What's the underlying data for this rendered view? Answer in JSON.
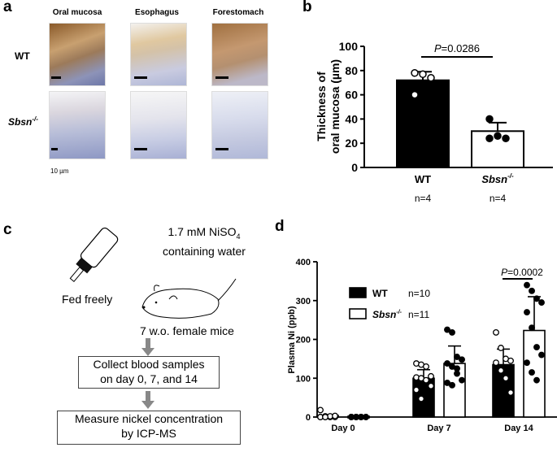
{
  "panel_a": {
    "label": "a",
    "columns": [
      "Oral mucosa",
      "Esophagus",
      "Forestomach"
    ],
    "rows": [
      "WT",
      "Sbsn"
    ],
    "row_sup": "-/-",
    "scale": "10 µm"
  },
  "panel_c": {
    "label": "c",
    "water": "1.7 mM NiSO",
    "water_sub": "4",
    "water2": "containing water",
    "fed": "Fed freely",
    "mice": "7 w.o. female mice",
    "step1a": "Collect blood samples",
    "step1b": "on day 0, 7, and 14",
    "step2a": "Measure nickel concentration",
    "step2b": "by ICP-MS"
  },
  "chart_data": [
    {
      "panel": "b",
      "type": "bar",
      "ylabel": "Thickness of oral mucosa (µm)",
      "ylabel1": "Thickness of",
      "ylabel2": "oral mucosa (µm)",
      "ylim": [
        0,
        100
      ],
      "yticks": [
        0,
        20,
        40,
        60,
        80,
        100
      ],
      "categories": [
        "WT",
        "Sbsn"
      ],
      "cat_sup": [
        "",
        "-/-"
      ],
      "n": [
        "n=4",
        "n=4"
      ],
      "means": [
        72,
        30
      ],
      "sd": [
        7,
        7
      ],
      "points": [
        [
          78,
          77,
          74,
          60
        ],
        [
          40,
          26,
          24,
          24
        ]
      ],
      "colors": [
        "#000000",
        "#ffffff"
      ],
      "annotation": {
        "p_prefix": "P",
        "p_value": "=0.0286"
      }
    },
    {
      "panel": "d",
      "type": "bar",
      "ylabel": "Plasma Ni (ppb)",
      "ylim": [
        0,
        400
      ],
      "yticks": [
        0,
        100,
        200,
        300,
        400
      ],
      "categories": [
        "Day 0",
        "Day 7",
        "Day 14"
      ],
      "series": [
        {
          "name": "WT",
          "sup": "",
          "n": "n=10",
          "color": "#000000",
          "means": [
            2,
            100,
            135
          ],
          "sd": [
            5,
            22,
            40
          ],
          "points": [
            [
              0,
              0,
              0,
              0,
              0,
              2,
              2,
              3,
              18,
              0
            ],
            [
              138,
              135,
              130,
              105,
              102,
              100,
              95,
              80,
              70,
              47
            ],
            [
              218,
              178,
              150,
              145,
              140,
              120,
              100,
              63
            ]
          ]
        },
        {
          "name": "Sbsn",
          "sup": "-/-",
          "n": "n=11",
          "color": "#ffffff",
          "means": [
            0,
            138,
            223
          ],
          "sd": [
            1,
            45,
            87
          ],
          "points": [
            [
              0,
              0,
              0,
              0,
              0,
              0,
              0,
              0,
              0,
              0,
              0
            ],
            [
              225,
              218,
              155,
              148,
              138,
              130,
              125,
              95,
              88,
              82,
              112
            ],
            [
              340,
              325,
              305,
              295,
              270,
              230,
              180,
              160,
              140,
              115,
              95
            ]
          ]
        }
      ],
      "annotation": {
        "p_prefix": "P",
        "p_value": "=0.0002"
      }
    }
  ]
}
